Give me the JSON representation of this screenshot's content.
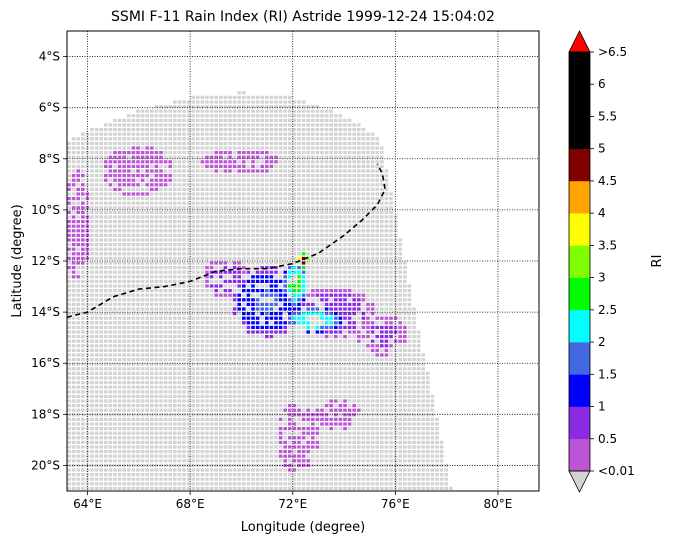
{
  "chart_data": {
    "type": "heatmap",
    "title": "SSMI F-11 Rain Index (RI) Astride 1999-12-24 15:04:02",
    "xlabel": "Longitude (degree)",
    "ylabel": "Latitude (degree)",
    "xlim": [
      63.2,
      81.6
    ],
    "ylim": [
      -21.0,
      -3.0
    ],
    "x_ticks": [
      {
        "value": 64,
        "label": "64°E"
      },
      {
        "value": 68,
        "label": "68°E"
      },
      {
        "value": 72,
        "label": "72°E"
      },
      {
        "value": 76,
        "label": "76°E"
      },
      {
        "value": 80,
        "label": "80°E"
      }
    ],
    "y_ticks": [
      {
        "value": -4,
        "label": "4°S"
      },
      {
        "value": -6,
        "label": "6°S"
      },
      {
        "value": -8,
        "label": "8°S"
      },
      {
        "value": -10,
        "label": "10°S"
      },
      {
        "value": -12,
        "label": "12°S"
      },
      {
        "value": -14,
        "label": "14°S"
      },
      {
        "value": -16,
        "label": "16°S"
      },
      {
        "value": -18,
        "label": "18°S"
      },
      {
        "value": -20,
        "label": "20°S"
      }
    ],
    "grid": true,
    "grid_style": "dotted",
    "swath": {
      "no_rain_color": "#d3d3d3",
      "outline": [
        [
          64.0,
          -6.9
        ],
        [
          66.0,
          -6.1
        ],
        [
          68.0,
          -5.6
        ],
        [
          70.0,
          -5.4
        ],
        [
          72.0,
          -5.6
        ],
        [
          74.0,
          -6.3
        ],
        [
          75.4,
          -7.2
        ],
        [
          78.2,
          -21.0
        ],
        [
          63.2,
          -21.0
        ],
        [
          63.2,
          -7.3
        ]
      ]
    },
    "track": {
      "style": "dashed",
      "color": "#000000",
      "points": [
        [
          63.2,
          -14.2
        ],
        [
          64.0,
          -14.0
        ],
        [
          65.0,
          -13.4
        ],
        [
          66.0,
          -13.1
        ],
        [
          67.0,
          -13.0
        ],
        [
          68.0,
          -12.8
        ],
        [
          69.0,
          -12.4
        ],
        [
          70.0,
          -12.3
        ],
        [
          71.0,
          -12.3
        ],
        [
          72.0,
          -12.1
        ],
        [
          73.0,
          -11.7
        ],
        [
          74.0,
          -11.0
        ],
        [
          74.7,
          -10.4
        ],
        [
          75.3,
          -9.8
        ],
        [
          75.6,
          -9.2
        ],
        [
          75.5,
          -8.6
        ],
        [
          75.3,
          -8.2
        ]
      ]
    },
    "colorbar": {
      "label": "RI",
      "boundaries": [
        0.01,
        0.5,
        1,
        1.5,
        2,
        2.5,
        3,
        3.5,
        4,
        4.5,
        5,
        5.5,
        6,
        6.5
      ],
      "tick_labels": [
        "<0.01",
        "0.5",
        "1",
        "1.5",
        "2",
        "2.5",
        "3",
        "3.5",
        "4",
        "4.5",
        "5",
        "5.5",
        "6",
        ">6.5"
      ],
      "colors": [
        "#ba55d3",
        "#8a2be2",
        "#0000ff",
        "#4169e1",
        "#00ffff",
        "#00ff00",
        "#7fff00",
        "#ffff00",
        "#ffa500",
        "#800000",
        "#000000",
        "#000000",
        "#000000"
      ],
      "extend_min_color": "#d3d3d3",
      "extend_max_color": "#ff0000"
    },
    "rain_regions": [
      {
        "center": [
          72.4,
          -12.0
        ],
        "spread": [
          0.3,
          0.3
        ],
        "value": 5.0
      },
      {
        "center": [
          72.1,
          -12.9
        ],
        "spread": [
          0.5,
          0.9
        ],
        "value": 2.8
      },
      {
        "center": [
          72.8,
          -14.3
        ],
        "spread": [
          1.2,
          0.5
        ],
        "value": 2.6
      },
      {
        "center": [
          71.0,
          -13.6
        ],
        "spread": [
          1.4,
          1.4
        ],
        "value": 1.6
      },
      {
        "center": [
          73.6,
          -14.0
        ],
        "spread": [
          1.6,
          1.0
        ],
        "value": 0.8
      },
      {
        "center": [
          69.4,
          -12.7
        ],
        "spread": [
          0.9,
          0.8
        ],
        "value": 0.7
      },
      {
        "center": [
          75.5,
          -14.9
        ],
        "spread": [
          1.0,
          0.8
        ],
        "value": 0.6
      },
      {
        "center": [
          66.0,
          -8.5
        ],
        "spread": [
          1.4,
          1.0
        ],
        "value": 0.4
      },
      {
        "center": [
          73.8,
          -18.0
        ],
        "spread": [
          0.9,
          0.6
        ],
        "value": 0.4
      },
      {
        "center": [
          72.2,
          -18.9
        ],
        "spread": [
          0.8,
          1.4
        ],
        "value": 0.4
      },
      {
        "center": [
          63.6,
          -10.6
        ],
        "spread": [
          0.5,
          2.2
        ],
        "value": 0.4
      },
      {
        "center": [
          70.0,
          -8.1
        ],
        "spread": [
          1.6,
          0.5
        ],
        "value": 0.3
      }
    ]
  }
}
